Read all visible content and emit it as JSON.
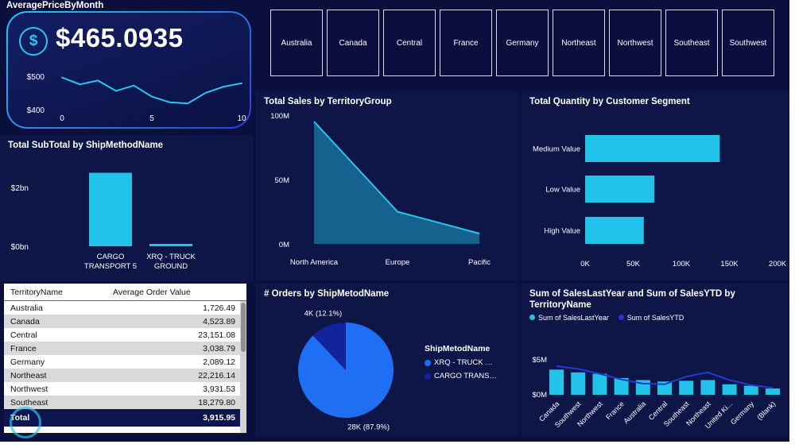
{
  "colors": {
    "bar": "#22c3ea",
    "spark": "#29c6f0",
    "area_fill": "#15628f",
    "area_stroke": "#29c3ef",
    "combo_line": "#2438d8"
  },
  "kpi": {
    "value": "$465.0935",
    "icon": "dollar-icon"
  },
  "slicers": [
    "Australia",
    "Canada",
    "Central",
    "France",
    "Germany",
    "Northeast",
    "Northwest",
    "Southeast",
    "Southwest"
  ],
  "table": {
    "columns": [
      "TerritoryName",
      "Average Order Value"
    ],
    "rows": [
      [
        "Australia",
        "1,726.49"
      ],
      [
        "Canada",
        "4,523.89"
      ],
      [
        "Central",
        "23,151.08"
      ],
      [
        "France",
        "3,038.79"
      ],
      [
        "Germany",
        "2,089.12"
      ],
      [
        "Northeast",
        "22,216.14"
      ],
      [
        "Northwest",
        "3,931.53"
      ],
      [
        "Southeast",
        "18,279.80"
      ]
    ],
    "total_label": "Total",
    "total_value": "3,915.95"
  },
  "chart_data": [
    {
      "id": "kpi-sparkline",
      "type": "line",
      "title": "AveragePriceByMonth",
      "x": [
        0,
        1,
        2,
        3,
        4,
        5,
        6,
        7,
        8,
        9,
        10
      ],
      "values": [
        480,
        462,
        472,
        445,
        459,
        430,
        415,
        412,
        440,
        456,
        465
      ],
      "ylim": [
        400,
        500
      ],
      "y_ticks": [
        "$500",
        "$400"
      ],
      "x_ticks": [
        "0",
        "5",
        "10"
      ]
    },
    {
      "id": "subtotal-bar",
      "type": "bar",
      "title": "Total SubTotal by ShipMethodName",
      "categories": [
        "CARGO TRANSPORT 5",
        "XRQ - TRUCK GROUND"
      ],
      "tick_lines": [
        [
          "CARGO",
          "TRANSPORT 5"
        ],
        [
          "XRQ - TRUCK",
          "GROUND"
        ]
      ],
      "values": [
        2.5,
        0.08
      ],
      "unit": "bn",
      "ylim": [
        0,
        2.6
      ],
      "y_ticks": [
        {
          "label": "$2bn",
          "v": 2
        },
        {
          "label": "$0bn",
          "v": 0
        }
      ]
    },
    {
      "id": "sales-area",
      "type": "area",
      "title": "Total Sales by TerritoryGroup",
      "categories": [
        "North America",
        "Europe",
        "Pacific"
      ],
      "values": [
        95,
        25,
        8
      ],
      "unit": "M",
      "ylim": [
        0,
        100
      ],
      "y_ticks": [
        {
          "label": "100M",
          "v": 100
        },
        {
          "label": "50M",
          "v": 50
        },
        {
          "label": "0M",
          "v": 0
        }
      ]
    },
    {
      "id": "quantity-hbar",
      "type": "bar",
      "orientation": "horizontal",
      "title": "Total Quantity by Customer Segment",
      "categories": [
        "Medium Value",
        "Low Value",
        "High Value"
      ],
      "values": [
        140,
        72,
        61
      ],
      "unit": "K",
      "xlim": [
        0,
        200
      ],
      "x_ticks": [
        {
          "label": "0K",
          "v": 0
        },
        {
          "label": "50K",
          "v": 50
        },
        {
          "label": "100K",
          "v": 100
        },
        {
          "label": "150K",
          "v": 150
        },
        {
          "label": "200K",
          "v": 200
        }
      ]
    },
    {
      "id": "orders-pie",
      "type": "pie",
      "title": "# Orders by ShipMetodName",
      "legend_title": "ShipMetodName",
      "slices": [
        {
          "label": "XRQ - TRUCK …",
          "value": 87.9,
          "data_label": "28K (87.9%)",
          "color": "#1f6ff5"
        },
        {
          "label": "CARGO TRANS…",
          "value": 12.1,
          "data_label": "4K (12.1%)",
          "color": "#12239e"
        }
      ]
    },
    {
      "id": "territory-combo",
      "type": "bar+line",
      "title": "Sum of SalesLastYear and Sum of SalesYTD by TerritoryName",
      "categories": [
        "Canada",
        "Southwest",
        "Northwest",
        "France",
        "Australia",
        "Central",
        "Southeast",
        "Northeast",
        "United Ki...",
        "Germany",
        "(Blank)"
      ],
      "series": [
        {
          "name": "Sum of SalesLastYear",
          "type": "bar",
          "color": "#22c3ea",
          "values": [
            3.6,
            3.2,
            3.0,
            2.4,
            2.1,
            1.9,
            2.0,
            2.1,
            1.5,
            1.3,
            0.9
          ]
        },
        {
          "name": "Sum of SalesYTD",
          "type": "line",
          "color": "#2438d8",
          "values": [
            4.1,
            3.7,
            3.0,
            2.2,
            1.6,
            1.5,
            2.6,
            3.2,
            2.1,
            1.4,
            1.0
          ]
        }
      ],
      "unit": "M",
      "ylim": [
        0,
        5
      ],
      "y_ticks": [
        {
          "label": "$5M",
          "v": 5
        },
        {
          "label": "$0M",
          "v": 0
        }
      ]
    }
  ]
}
